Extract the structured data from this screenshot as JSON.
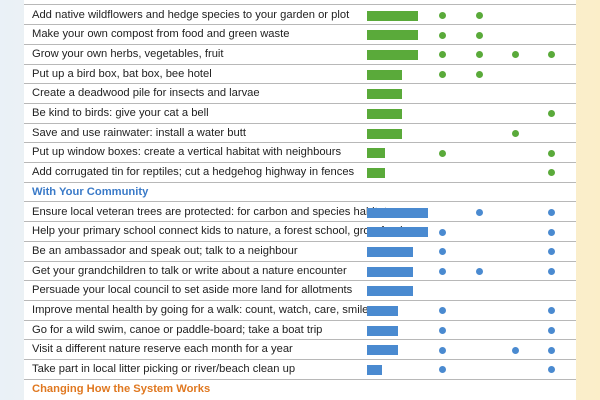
{
  "colors": {
    "green": "#5aaa3a",
    "blue": "#4a8ad0",
    "community_head": "#3a7ac8",
    "system_head": "#e07820"
  },
  "garden_rows": [
    {
      "label": "Add native wildflowers and hedge species to your garden or plot",
      "bar": 0.84,
      "dots": [
        1,
        2
      ]
    },
    {
      "label": "Make your own compost from food and green waste",
      "bar": 0.84,
      "dots": [
        1,
        2
      ]
    },
    {
      "label": "Grow your own herbs, vegetables, fruit",
      "bar": 0.84,
      "dots": [
        1,
        2,
        3,
        4
      ]
    },
    {
      "label": "Put up a bird box, bat box, bee hotel",
      "bar": 0.58,
      "dots": [
        1,
        2
      ]
    },
    {
      "label": "Create a deadwood pile for insects and larvae",
      "bar": 0.58,
      "dots": []
    },
    {
      "label": "Be kind to birds: give your cat a bell",
      "bar": 0.58,
      "dots": [
        4
      ]
    },
    {
      "label": "Save and use rainwater: install a water butt",
      "bar": 0.58,
      "dots": [
        3
      ]
    },
    {
      "label": "Put up window boxes: create a vertical habitat with neighbours",
      "bar": 0.3,
      "dots": [
        1,
        4
      ]
    },
    {
      "label": "Add corrugated tin for reptiles; cut a hedgehog highway in fences",
      "bar": 0.3,
      "dots": [
        4
      ]
    }
  ],
  "community_heading": "With Your Community",
  "community_rows": [
    {
      "label": "Ensure local veteran trees are protected: for carbon and species habitat",
      "bar": 1.0,
      "dots": [
        2,
        4
      ]
    },
    {
      "label": "Help your primary school connect kids to nature, a forest school, grow food",
      "bar": 1.0,
      "dots": [
        1,
        4
      ]
    },
    {
      "label": "Be an ambassador and speak out; talk to a neighbour",
      "bar": 0.76,
      "dots": [
        1,
        4
      ]
    },
    {
      "label": "Get your grandchildren to talk or write about a nature encounter",
      "bar": 0.76,
      "dots": [
        1,
        2,
        4
      ]
    },
    {
      "label": "Persuade your local council to set aside more land for allotments",
      "bar": 0.76,
      "dots": []
    },
    {
      "label": "Improve mental health by going for a walk: count, watch, care, smile",
      "bar": 0.5,
      "dots": [
        1,
        4
      ]
    },
    {
      "label": "Go for a wild swim, canoe or paddle-board; take a boat trip",
      "bar": 0.5,
      "dots": [
        1,
        4
      ]
    },
    {
      "label": "Visit a different nature reserve each month for a year",
      "bar": 0.5,
      "dots": [
        1,
        3,
        4
      ]
    },
    {
      "label": "Take part in local litter picking or river/beach clean up",
      "bar": 0.25,
      "dots": [
        1,
        4
      ]
    }
  ],
  "system_heading": "Changing How the System Works"
}
